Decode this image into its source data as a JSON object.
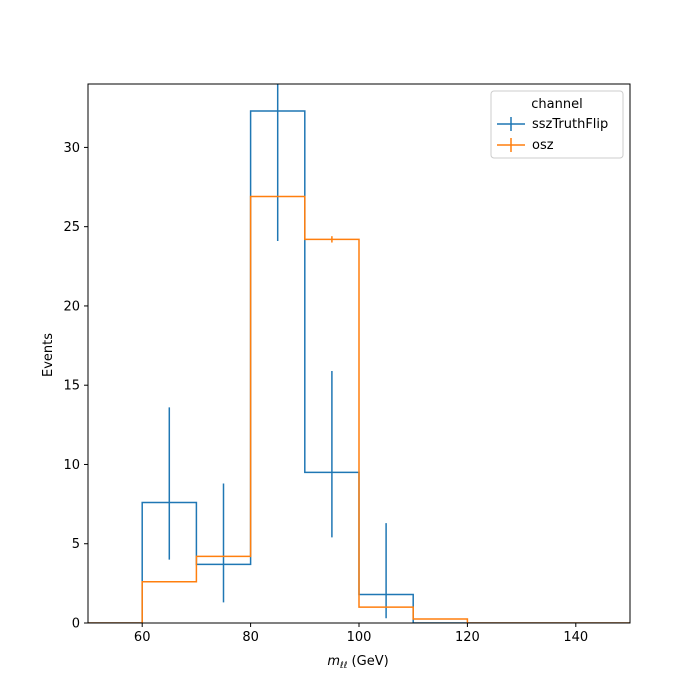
{
  "chart_data": {
    "type": "histogram-step",
    "xlabel_math": "m",
    "xlabel_sub": "ℓℓ",
    "xlabel_unit": " (GeV)",
    "ylabel": "Events",
    "xlim": [
      50,
      150
    ],
    "ylim": [
      0,
      34
    ],
    "xticks": [
      60,
      80,
      100,
      120,
      140
    ],
    "yticks": [
      0,
      5,
      10,
      15,
      20,
      25,
      30
    ],
    "bin_edges": [
      50,
      60,
      70,
      80,
      90,
      100,
      110,
      120,
      130,
      140,
      150
    ],
    "legend_title": "channel",
    "legend_position": "upper right",
    "series": [
      {
        "name": "sszTruthFlip",
        "color": "#1f77b4",
        "values": [
          0,
          7.6,
          3.7,
          32.3,
          9.5,
          1.8,
          0,
          0,
          0,
          0
        ],
        "errors": [
          {
            "x": 65,
            "low": 4.0,
            "high": 13.6
          },
          {
            "x": 75,
            "low": 1.3,
            "high": 8.8
          },
          {
            "x": 85,
            "low": 24.1,
            "high": 34.0
          },
          {
            "x": 95,
            "low": 5.4,
            "high": 15.9
          },
          {
            "x": 105,
            "low": 0.3,
            "high": 6.3
          }
        ]
      },
      {
        "name": "osz",
        "color": "#ff7f0e",
        "values": [
          0,
          2.6,
          4.2,
          26.9,
          24.2,
          1.0,
          0.25,
          0,
          0,
          0
        ],
        "errors": [
          {
            "x": 95,
            "low": 24.0,
            "high": 24.4
          }
        ]
      }
    ]
  }
}
